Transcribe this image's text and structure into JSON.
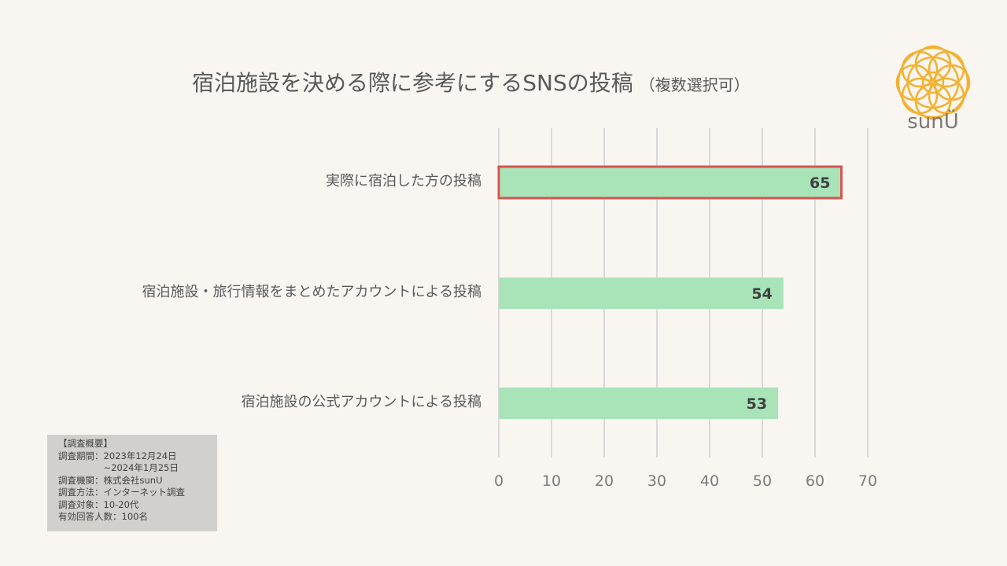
{
  "title": "宿泊施設を決める際に参考にするSNSの投稿",
  "subtitle": "（複数選択可）",
  "brand": "sunÜ",
  "summary": {
    "heading": "【調査概要】",
    "lines": [
      "調査期間：2023年12月24日",
      "　　　　　~2024年1月25日",
      "調査機関：株式会社sunU",
      "調査方法：インターネット調査",
      "調査対象：10-20代",
      "有効回答人数：100名"
    ]
  },
  "colors": {
    "bar": "#a8e4b8",
    "highlight": "#d9534f",
    "grid": "#d9d9d9",
    "text": "#595959"
  },
  "chart_data": {
    "type": "bar",
    "orientation": "horizontal",
    "categories": [
      "実際に宿泊した方の投稿",
      "宿泊施設・旅行情報をまとめたアカウントによる投稿",
      "宿泊施設の公式アカウントによる投稿"
    ],
    "values": [
      65,
      54,
      53
    ],
    "highlighted": [
      0
    ],
    "xlim": [
      0,
      70
    ],
    "xticks": [
      "0",
      "10",
      "20",
      "30",
      "40",
      "50",
      "60",
      "70"
    ],
    "data_labels": [
      "65",
      "54",
      "53"
    ],
    "grid": true
  }
}
